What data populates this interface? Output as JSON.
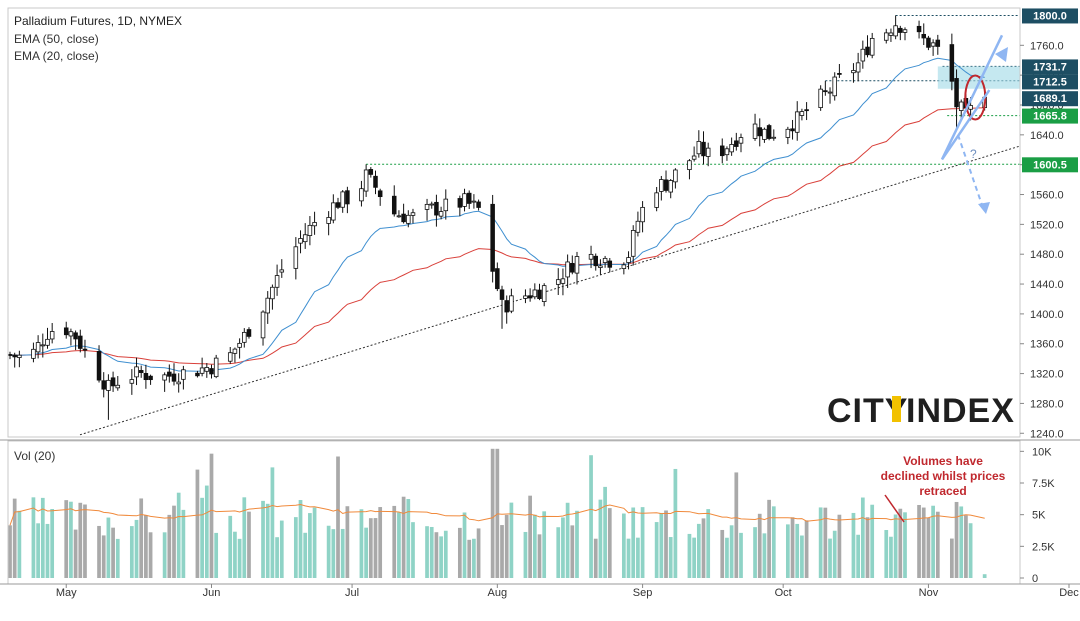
{
  "chart_data": {
    "type": "candlestick",
    "title": "Palladium Futures, 1D, NYMEX",
    "indicators": [
      "EMA (50, close)",
      "EMA (20, close)"
    ],
    "volume_title": "Vol (20)",
    "brand": {
      "part1": "CITY",
      "part2": "INDEX"
    },
    "ylim": [
      1235,
      1810
    ],
    "y_ticks": [
      1240,
      1280,
      1320,
      1360,
      1400,
      1440,
      1480,
      1520,
      1560,
      1600,
      1640,
      1680,
      1720,
      1760
    ],
    "y_tick_labels": [
      "1240.0",
      "1280.0",
      "1320.0",
      "1360.0",
      "1400.0",
      "1440.0",
      "1480.0",
      "1520.0",
      "1560.0",
      "1600.0",
      "1640.0",
      "1680.0",
      "1720.0",
      "1760.0"
    ],
    "x_range_days": [
      -12,
      179
    ],
    "x_ticks": [
      {
        "label": "May",
        "day": 0
      },
      {
        "label": "Jun",
        "day": 31
      },
      {
        "label": "Jul",
        "day": 61
      },
      {
        "label": "Aug",
        "day": 92
      },
      {
        "label": "Sep",
        "day": 123
      },
      {
        "label": "Oct",
        "day": 153
      },
      {
        "label": "Nov",
        "day": 184
      },
      {
        "label": "Dec",
        "day": 214
      }
    ],
    "volume_ticks": [
      0,
      2500,
      5000,
      7500,
      10000
    ],
    "volume_tick_labels": [
      "0",
      "2.5K",
      "5K",
      "7.5K",
      "10K"
    ],
    "volume_ylim": [
      0,
      10500
    ],
    "price_labels": [
      {
        "value": 1800.0,
        "text": "1800.0",
        "color": "#1d4e63"
      },
      {
        "value": 1731.7,
        "text": "1731.7",
        "color": "#1d4e63"
      },
      {
        "value": 1712.5,
        "text": "1712.5",
        "color": "#1d4e63"
      },
      {
        "value": 1689.1,
        "text": "1689.1",
        "color": "#1d4e63"
      },
      {
        "value": 1665.8,
        "text": "1665.8",
        "color": "#1a9e45"
      },
      {
        "value": 1600.5,
        "text": "1600.5",
        "color": "#1a9e45"
      }
    ],
    "annotation": {
      "lines": [
        "Volumes have",
        "declined whilst prices",
        "retraced"
      ],
      "question": "?"
    },
    "key_points": [
      {
        "date": "May 10",
        "low": 1258
      },
      {
        "date": "Jul 13",
        "high": 1600.5
      },
      {
        "date": "Aug 2",
        "low": 1380
      },
      {
        "date": "Nov 3",
        "high": 1800.0
      },
      {
        "date": "Nov 11",
        "low": 1648
      },
      {
        "date": "Nov 17",
        "close": 1700
      }
    ],
    "close_anchors": [
      [
        -12,
        1345
      ],
      [
        -8,
        1340
      ],
      [
        -4,
        1375
      ],
      [
        -1,
        1385
      ],
      [
        2,
        1370
      ],
      [
        6,
        1330
      ],
      [
        9,
        1300
      ],
      [
        12,
        1315
      ],
      [
        16,
        1320
      ],
      [
        20,
        1315
      ],
      [
        24,
        1320
      ],
      [
        28,
        1325
      ],
      [
        31,
        1330
      ],
      [
        35,
        1345
      ],
      [
        38,
        1370
      ],
      [
        42,
        1410
      ],
      [
        46,
        1460
      ],
      [
        50,
        1500
      ],
      [
        54,
        1530
      ],
      [
        58,
        1550
      ],
      [
        62,
        1560
      ],
      [
        64,
        1585
      ],
      [
        66,
        1570
      ],
      [
        70,
        1535
      ],
      [
        74,
        1530
      ],
      [
        78,
        1540
      ],
      [
        82,
        1545
      ],
      [
        85,
        1550
      ],
      [
        88,
        1540
      ],
      [
        91,
        1460
      ],
      [
        93,
        1410
      ],
      [
        96,
        1420
      ],
      [
        100,
        1430
      ],
      [
        104,
        1440
      ],
      [
        106,
        1455
      ],
      [
        110,
        1480
      ],
      [
        114,
        1475
      ],
      [
        118,
        1470
      ],
      [
        120,
        1480
      ],
      [
        122,
        1525
      ],
      [
        125,
        1570
      ],
      [
        128,
        1575
      ],
      [
        132,
        1600
      ],
      [
        135,
        1620
      ],
      [
        138,
        1610
      ],
      [
        142,
        1630
      ],
      [
        146,
        1655
      ],
      [
        150,
        1640
      ],
      [
        153,
        1650
      ],
      [
        156,
        1660
      ],
      [
        160,
        1685
      ],
      [
        163,
        1700
      ],
      [
        166,
        1720
      ],
      [
        169,
        1735
      ],
      [
        172,
        1770
      ],
      [
        175,
        1780
      ],
      [
        177,
        1790
      ],
      [
        179,
        1785
      ],
      [
        182,
        1770
      ],
      [
        185,
        1760
      ],
      [
        188,
        1740
      ],
      [
        190,
        1680
      ],
      [
        192,
        1665
      ],
      [
        194,
        1680
      ],
      [
        196,
        1700
      ]
    ],
    "volume_base": 3000
  }
}
